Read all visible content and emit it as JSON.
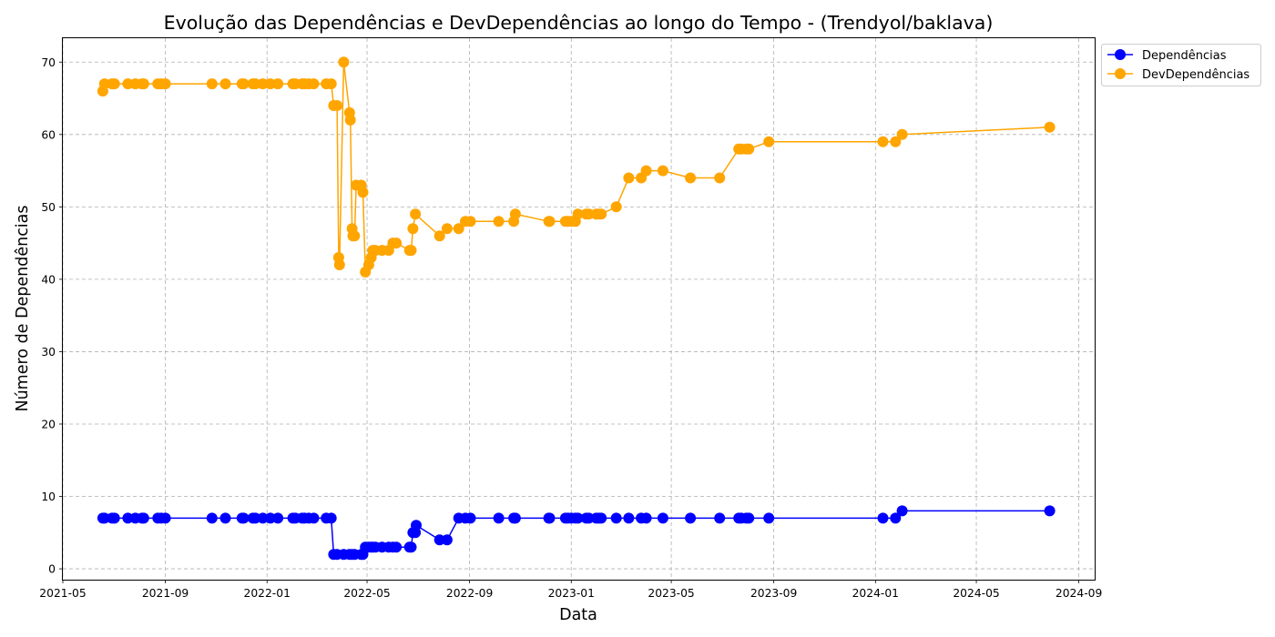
{
  "chart_data": {
    "type": "line",
    "title": "Evolução das Dependências e DevDependências ao longo do Tempo - (Trendyol/baklava)",
    "xlabel": "Data",
    "ylabel": "Número de Dependências",
    "xlim": [
      "2021-05-01",
      "2024-09-20"
    ],
    "ylim": [
      -1.5,
      73.3
    ],
    "x_ticks": [
      "2021-05-01",
      "2021-09-01",
      "2022-01-01",
      "2022-05-01",
      "2022-09-01",
      "2023-01-01",
      "2023-05-01",
      "2023-09-01",
      "2024-01-01",
      "2024-05-01",
      "2024-09-01"
    ],
    "x_tick_labels": [
      "2021-05",
      "2021-09",
      "2022-01",
      "2022-05",
      "2022-09",
      "2023-01",
      "2023-05",
      "2023-09",
      "2024-01",
      "2024-05",
      "2024-09"
    ],
    "y_ticks": [
      0,
      10,
      20,
      30,
      40,
      50,
      60,
      70
    ],
    "grid": true,
    "legend_position": "outside-top-right",
    "series": [
      {
        "name": "Dependências",
        "color": "#0000ff",
        "points": [
          [
            "2021-06-18",
            7
          ],
          [
            "2021-06-20",
            7
          ],
          [
            "2021-06-29",
            7
          ],
          [
            "2021-07-02",
            7
          ],
          [
            "2021-07-18",
            7
          ],
          [
            "2021-07-27",
            7
          ],
          [
            "2021-08-04",
            7
          ],
          [
            "2021-08-06",
            7
          ],
          [
            "2021-08-23",
            7
          ],
          [
            "2021-08-27",
            7
          ],
          [
            "2021-09-01",
            7
          ],
          [
            "2021-10-27",
            7
          ],
          [
            "2021-11-12",
            7
          ],
          [
            "2021-12-02",
            7
          ],
          [
            "2021-12-04",
            7
          ],
          [
            "2021-12-15",
            7
          ],
          [
            "2021-12-18",
            7
          ],
          [
            "2021-12-27",
            7
          ],
          [
            "2022-01-05",
            7
          ],
          [
            "2022-01-14",
            7
          ],
          [
            "2022-02-01",
            7
          ],
          [
            "2022-02-04",
            7
          ],
          [
            "2022-02-12",
            7
          ],
          [
            "2022-02-15",
            7
          ],
          [
            "2022-02-20",
            7
          ],
          [
            "2022-02-26",
            7
          ],
          [
            "2022-03-13",
            7
          ],
          [
            "2022-03-19",
            7
          ],
          [
            "2022-03-22",
            2
          ],
          [
            "2022-03-26",
            2
          ],
          [
            "2022-04-03",
            2
          ],
          [
            "2022-04-10",
            2
          ],
          [
            "2022-04-13",
            2
          ],
          [
            "2022-04-16",
            2
          ],
          [
            "2022-04-24",
            2
          ],
          [
            "2022-04-26",
            2
          ],
          [
            "2022-04-29",
            3
          ],
          [
            "2022-05-03",
            3
          ],
          [
            "2022-05-06",
            3
          ],
          [
            "2022-05-08",
            3
          ],
          [
            "2022-05-11",
            3
          ],
          [
            "2022-05-19",
            3
          ],
          [
            "2022-05-27",
            3
          ],
          [
            "2022-06-01",
            3
          ],
          [
            "2022-06-05",
            3
          ],
          [
            "2022-06-21",
            3
          ],
          [
            "2022-06-23",
            3
          ],
          [
            "2022-06-25",
            5
          ],
          [
            "2022-06-28",
            5
          ],
          [
            "2022-06-29",
            6
          ],
          [
            "2022-07-27",
            4
          ],
          [
            "2022-08-05",
            4
          ],
          [
            "2022-08-19",
            7
          ],
          [
            "2022-08-27",
            7
          ],
          [
            "2022-09-02",
            7
          ],
          [
            "2022-10-06",
            7
          ],
          [
            "2022-10-24",
            7
          ],
          [
            "2022-10-26",
            7
          ],
          [
            "2022-12-05",
            7
          ],
          [
            "2022-12-06",
            7
          ],
          [
            "2022-12-25",
            7
          ],
          [
            "2022-12-28",
            7
          ],
          [
            "2023-01-01",
            7
          ],
          [
            "2023-01-06",
            7
          ],
          [
            "2023-01-09",
            7
          ],
          [
            "2023-01-19",
            7
          ],
          [
            "2023-01-22",
            7
          ],
          [
            "2023-01-31",
            7
          ],
          [
            "2023-02-03",
            7
          ],
          [
            "2023-02-06",
            7
          ],
          [
            "2023-02-24",
            7
          ],
          [
            "2023-03-11",
            7
          ],
          [
            "2023-03-26",
            7
          ],
          [
            "2023-04-01",
            7
          ],
          [
            "2023-04-21",
            7
          ],
          [
            "2023-05-24",
            7
          ],
          [
            "2023-06-28",
            7
          ],
          [
            "2023-07-21",
            7
          ],
          [
            "2023-07-24",
            7
          ],
          [
            "2023-07-30",
            7
          ],
          [
            "2023-08-02",
            7
          ],
          [
            "2023-08-26",
            7
          ],
          [
            "2024-01-10",
            7
          ],
          [
            "2024-01-25",
            7
          ],
          [
            "2024-02-02",
            8
          ],
          [
            "2024-07-28",
            8
          ]
        ]
      },
      {
        "name": "DevDependências",
        "color": "#ffa500",
        "points": [
          [
            "2021-06-18",
            66
          ],
          [
            "2021-06-20",
            67
          ],
          [
            "2021-06-29",
            67
          ],
          [
            "2021-07-02",
            67
          ],
          [
            "2021-07-18",
            67
          ],
          [
            "2021-07-27",
            67
          ],
          [
            "2021-08-04",
            67
          ],
          [
            "2021-08-06",
            67
          ],
          [
            "2021-08-23",
            67
          ],
          [
            "2021-08-27",
            67
          ],
          [
            "2021-09-01",
            67
          ],
          [
            "2021-10-27",
            67
          ],
          [
            "2021-11-12",
            67
          ],
          [
            "2021-12-02",
            67
          ],
          [
            "2021-12-04",
            67
          ],
          [
            "2021-12-15",
            67
          ],
          [
            "2021-12-18",
            67
          ],
          [
            "2021-12-27",
            67
          ],
          [
            "2022-01-05",
            67
          ],
          [
            "2022-01-14",
            67
          ],
          [
            "2022-02-01",
            67
          ],
          [
            "2022-02-04",
            67
          ],
          [
            "2022-02-12",
            67
          ],
          [
            "2022-02-15",
            67
          ],
          [
            "2022-02-20",
            67
          ],
          [
            "2022-02-26",
            67
          ],
          [
            "2022-03-13",
            67
          ],
          [
            "2022-03-19",
            67
          ],
          [
            "2022-03-22",
            64
          ],
          [
            "2022-03-26",
            64
          ],
          [
            "2022-03-28",
            43
          ],
          [
            "2022-03-29",
            42
          ],
          [
            "2022-04-03",
            70
          ],
          [
            "2022-04-10",
            63
          ],
          [
            "2022-04-11",
            62
          ],
          [
            "2022-04-13",
            47
          ],
          [
            "2022-04-14",
            46
          ],
          [
            "2022-04-16",
            46
          ],
          [
            "2022-04-18",
            53
          ],
          [
            "2022-04-24",
            53
          ],
          [
            "2022-04-26",
            52
          ],
          [
            "2022-04-29",
            41
          ],
          [
            "2022-05-03",
            42
          ],
          [
            "2022-05-06",
            43
          ],
          [
            "2022-05-08",
            44
          ],
          [
            "2022-05-11",
            44
          ],
          [
            "2022-05-19",
            44
          ],
          [
            "2022-05-27",
            44
          ],
          [
            "2022-06-01",
            45
          ],
          [
            "2022-06-05",
            45
          ],
          [
            "2022-06-21",
            44
          ],
          [
            "2022-06-23",
            44
          ],
          [
            "2022-06-25",
            47
          ],
          [
            "2022-06-28",
            49
          ],
          [
            "2022-07-27",
            46
          ],
          [
            "2022-08-05",
            47
          ],
          [
            "2022-08-19",
            47
          ],
          [
            "2022-08-27",
            48
          ],
          [
            "2022-09-02",
            48
          ],
          [
            "2022-10-06",
            48
          ],
          [
            "2022-10-24",
            48
          ],
          [
            "2022-10-26",
            49
          ],
          [
            "2022-12-05",
            48
          ],
          [
            "2022-12-06",
            48
          ],
          [
            "2022-12-25",
            48
          ],
          [
            "2022-12-28",
            48
          ],
          [
            "2023-01-01",
            48
          ],
          [
            "2023-01-06",
            48
          ],
          [
            "2023-01-09",
            49
          ],
          [
            "2023-01-19",
            49
          ],
          [
            "2023-01-22",
            49
          ],
          [
            "2023-01-31",
            49
          ],
          [
            "2023-02-03",
            49
          ],
          [
            "2023-02-06",
            49
          ],
          [
            "2023-02-24",
            50
          ],
          [
            "2023-03-11",
            54
          ],
          [
            "2023-03-26",
            54
          ],
          [
            "2023-04-01",
            55
          ],
          [
            "2023-04-21",
            55
          ],
          [
            "2023-05-24",
            54
          ],
          [
            "2023-06-28",
            54
          ],
          [
            "2023-07-21",
            58
          ],
          [
            "2023-07-24",
            58
          ],
          [
            "2023-07-30",
            58
          ],
          [
            "2023-08-02",
            58
          ],
          [
            "2023-08-26",
            59
          ],
          [
            "2024-01-10",
            59
          ],
          [
            "2024-01-25",
            59
          ],
          [
            "2024-02-02",
            60
          ],
          [
            "2024-07-28",
            61
          ]
        ]
      }
    ]
  }
}
